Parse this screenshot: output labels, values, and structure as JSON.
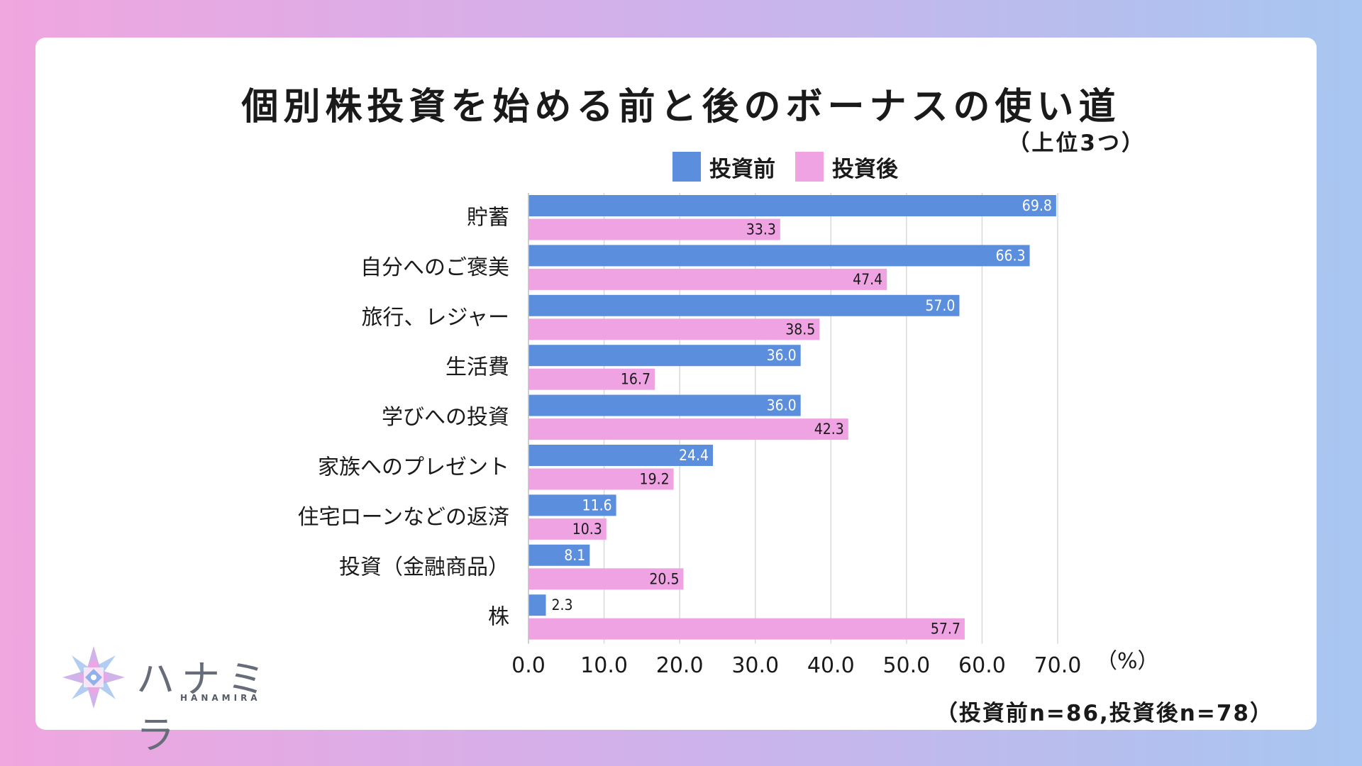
{
  "header": {
    "title": "個別株投資を始める前と後のボーナスの使い道",
    "subtitle": "（上位3つ）"
  },
  "footer": {
    "note": "（投資前n=86,投資後n=78）"
  },
  "brand": {
    "name": "ハナミラ",
    "sub": "HANAMIRA",
    "icon": "kaleidoscope-flower-icon"
  },
  "colors": {
    "before": "#5b8fde",
    "after": "#f0a3e2"
  },
  "chart_data": {
    "type": "bar",
    "orientation": "horizontal",
    "categories": [
      "貯蓄",
      "自分へのご褒美",
      "旅行、レジャー",
      "生活費",
      "学びへの投資",
      "家族へのプレゼント",
      "住宅ローンなどの返済",
      "投資（金融商品）",
      "株"
    ],
    "series": [
      {
        "name": "投資前",
        "values": [
          69.8,
          66.3,
          57.0,
          36.0,
          36.0,
          24.4,
          11.6,
          8.1,
          2.3
        ]
      },
      {
        "name": "投資後",
        "values": [
          33.3,
          47.4,
          38.5,
          16.7,
          42.3,
          19.2,
          10.3,
          20.5,
          57.7
        ]
      }
    ],
    "value_labels": {
      "投資前": [
        "69.8",
        "66.3",
        "57.0",
        "36.0",
        "36.0",
        "24.4",
        "11.6",
        "8.1",
        "2.3"
      ],
      "投資後": [
        "33.3",
        "47.4",
        "38.5",
        "16.7",
        "42.3",
        "19.2",
        "10.3",
        "20.5",
        "57.7"
      ]
    },
    "xlim": [
      0,
      70
    ],
    "x_ticks": [
      "0.0",
      "10.0",
      "20.0",
      "30.0",
      "40.0",
      "50.0",
      "60.0",
      "70.0"
    ],
    "x_unit": "（%）",
    "legend": "top-center",
    "grid": true
  }
}
